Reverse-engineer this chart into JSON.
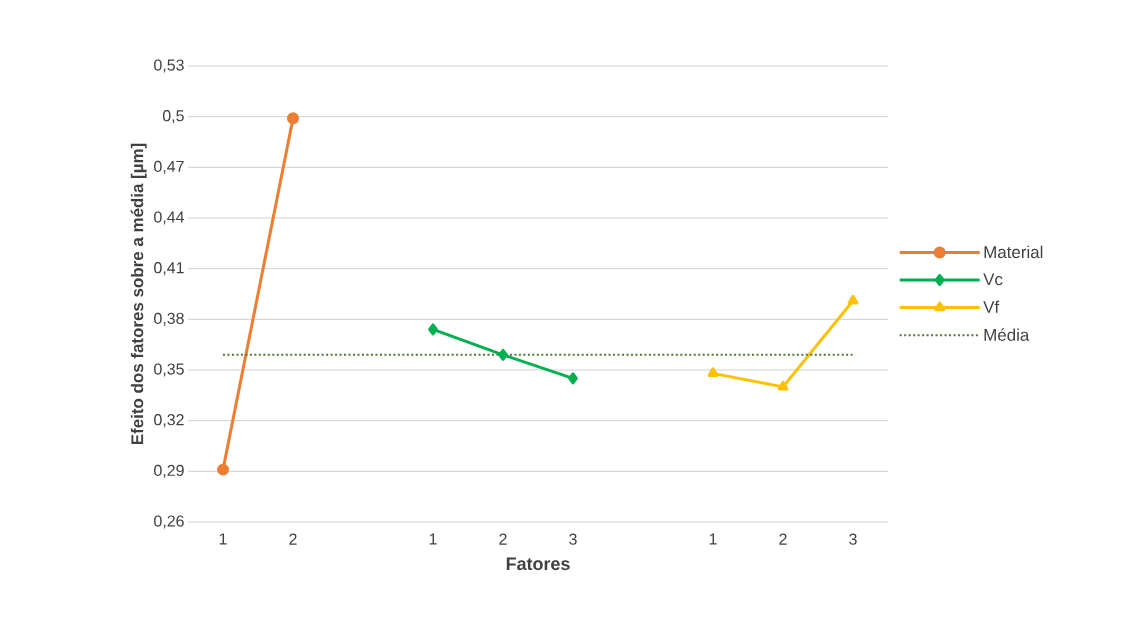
{
  "chart_data": {
    "type": "line",
    "xlabel": "Fatores",
    "ylabel": "Efeito dos fatores sobre a média [µm]",
    "categories": [
      "1",
      "2",
      null,
      "1",
      "2",
      "3",
      null,
      "1",
      "2",
      "3"
    ],
    "series": [
      {
        "name": "Material",
        "color": "#ed7d31",
        "marker": "circle",
        "values": [
          0.291,
          0.499,
          null,
          null,
          null,
          null,
          null,
          null,
          null,
          null
        ]
      },
      {
        "name": "Vc",
        "color": "#00b050",
        "marker": "diamond",
        "values": [
          null,
          null,
          null,
          0.374,
          0.359,
          0.345,
          null,
          null,
          null,
          null
        ]
      },
      {
        "name": "Vf",
        "color": "#ffc000",
        "marker": "triangle",
        "values": [
          null,
          null,
          null,
          null,
          null,
          null,
          null,
          0.348,
          0.34,
          0.391
        ]
      },
      {
        "name": "Média",
        "color": "#4a7a2c",
        "marker": "none",
        "line_style": "dotted",
        "values": [
          0.359,
          0.359,
          0.359,
          0.359,
          0.359,
          0.359,
          0.359,
          0.359,
          0.359,
          0.359
        ]
      }
    ],
    "ylim": [
      0.26,
      0.53
    ],
    "yticks": [
      {
        "value": 0.26,
        "label": "0,26"
      },
      {
        "value": 0.29,
        "label": "0,29"
      },
      {
        "value": 0.32,
        "label": "0,32"
      },
      {
        "value": 0.35,
        "label": "0,35"
      },
      {
        "value": 0.38,
        "label": "0,38"
      },
      {
        "value": 0.41,
        "label": "0,41"
      },
      {
        "value": 0.44,
        "label": "0,44"
      },
      {
        "value": 0.47,
        "label": "0,47"
      },
      {
        "value": 0.5,
        "label": "0,5"
      },
      {
        "value": 0.53,
        "label": "0,53"
      }
    ],
    "grid": "y",
    "legend": "right"
  }
}
